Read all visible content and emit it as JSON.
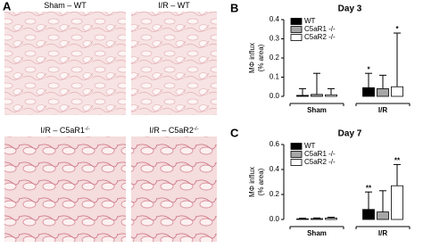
{
  "panel_a": {
    "label": "A",
    "images": [
      {
        "title": "Sham – WT",
        "sup": null
      },
      {
        "title": "I/R – WT",
        "sup": null
      },
      {
        "title": "I/R – C5aR1",
        "sup": "-/-"
      },
      {
        "title": "I/R – C5aR2",
        "sup": "-/-"
      }
    ]
  },
  "chart_data": [
    {
      "type": "bar",
      "panel_label": "B",
      "title": "Day 3",
      "y_label": [
        "MΦ influx",
        "(% area)"
      ],
      "categories": [
        "Sham",
        "I/R"
      ],
      "series": [
        {
          "name": "WT",
          "color": "#000000",
          "values": [
            0.005,
            0.045
          ],
          "errors": [
            0.035,
            0.075
          ],
          "significance": [
            null,
            "*"
          ]
        },
        {
          "name": "C5aR1 -/-",
          "color": "#a6a6a6",
          "values": [
            0.01,
            0.04
          ],
          "errors": [
            0.11,
            0.07
          ],
          "significance": [
            null,
            null
          ]
        },
        {
          "name": "C5aR2 -/-",
          "color": "#ffffff",
          "values": [
            0.008,
            0.05
          ],
          "errors": [
            0.032,
            0.28
          ],
          "significance": [
            null,
            "*"
          ]
        }
      ],
      "ylim": [
        0,
        0.4
      ],
      "yticks": [
        {
          "value": 0,
          "label": "0.0"
        },
        0.1,
        0.2,
        0.3,
        0.4
      ]
    },
    {
      "type": "bar",
      "panel_label": "C",
      "title": "Day 7",
      "y_label": [
        "MΦ influx",
        "(% area)"
      ],
      "categories": [
        "Sham",
        "I/R"
      ],
      "series": [
        {
          "name": "WT",
          "color": "#000000",
          "values": [
            0.005,
            0.08
          ],
          "errors": [
            0.005,
            0.14
          ],
          "significance": [
            null,
            "**"
          ]
        },
        {
          "name": "C5aR1 -/-",
          "color": "#a6a6a6",
          "values": [
            0.007,
            0.06
          ],
          "errors": [
            0.005,
            0.17
          ],
          "significance": [
            null,
            null
          ]
        },
        {
          "name": "C5aR2 -/-",
          "color": "#ffffff",
          "values": [
            0.01,
            0.27
          ],
          "errors": [
            0.008,
            0.17
          ],
          "significance": [
            null,
            "**"
          ]
        }
      ],
      "ylim": [
        0,
        0.6
      ],
      "yticks": [
        {
          "value": 0,
          "label": "0.0"
        },
        0.2,
        0.4,
        0.6
      ]
    }
  ]
}
